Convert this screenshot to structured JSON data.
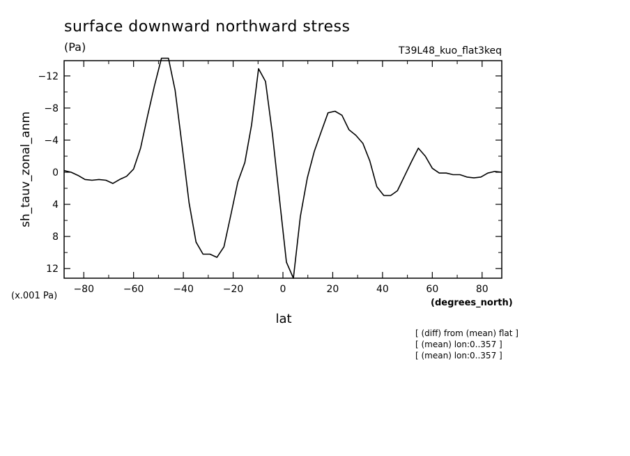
{
  "chart_data": {
    "type": "line",
    "title": "surface downward northward stress",
    "units_label": "(Pa)",
    "run_label": "T39L48_kuo_flat3keq",
    "xlabel": "lat",
    "x_units_label": "(degrees_north)",
    "ylabel": "sh_tauv_zonal_anm",
    "y_scale_label": "(x.001 Pa)",
    "notes": [
      "[ (diff) from (mean) flat ]",
      "[ (mean) lon:0..357 ]",
      "[ (mean) lon:0..357 ]"
    ],
    "xlim": [
      -87.9,
      87.9
    ],
    "ylim": [
      13.2,
      -13.9
    ],
    "y_inverted": true,
    "grid": false,
    "x_ticks": [
      -80,
      -60,
      -40,
      -20,
      0,
      20,
      40,
      60,
      80
    ],
    "x_tick_labels": [
      "−80",
      "−60",
      "−40",
      "−20",
      "0",
      "20",
      "40",
      "60",
      "80"
    ],
    "y_ticks": [
      -12,
      -8,
      -4,
      0,
      4,
      8,
      12
    ],
    "y_tick_labels": [
      "−12",
      "−8",
      "−4",
      "0",
      "4",
      "8",
      "12"
    ],
    "series": [
      {
        "x": [
          -87.9,
          -85.1,
          -82.3,
          -79.5,
          -76.7,
          -73.9,
          -71.1,
          -68.3,
          -65.6,
          -62.8,
          -60.0,
          -57.2,
          -54.4,
          -51.6,
          -48.8,
          -46.0,
          -43.3,
          -40.5,
          -37.7,
          -34.9,
          -32.1,
          -29.3,
          -26.5,
          -23.7,
          -20.9,
          -18.1,
          -15.3,
          -12.6,
          -9.8,
          -7.0,
          -4.2,
          -1.4,
          1.4,
          4.2,
          7.0,
          9.8,
          12.6,
          15.3,
          18.1,
          20.9,
          23.7,
          26.5,
          29.3,
          32.1,
          34.9,
          37.7,
          40.5,
          43.3,
          46.0,
          48.8,
          51.6,
          54.4,
          57.2,
          60.0,
          62.8,
          65.6,
          68.3,
          71.1,
          73.9,
          76.7,
          79.5,
          82.3,
          85.1,
          87.9
        ],
        "values": [
          -0.2,
          0.0,
          0.4,
          0.9,
          1.0,
          0.9,
          1.0,
          1.4,
          0.9,
          0.5,
          -0.4,
          -3.0,
          -7.0,
          -10.8,
          -14.2,
          -14.2,
          -10.2,
          -3.3,
          3.8,
          8.7,
          10.2,
          10.2,
          10.6,
          9.3,
          5.3,
          1.2,
          -1.2,
          -5.9,
          -12.9,
          -11.3,
          -4.7,
          3.3,
          11.2,
          13.2,
          5.5,
          0.7,
          -2.6,
          -5.0,
          -7.4,
          -7.6,
          -7.1,
          -5.3,
          -4.6,
          -3.6,
          -1.4,
          1.8,
          2.9,
          2.9,
          2.3,
          0.5,
          -1.3,
          -3.0,
          -2.0,
          -0.5,
          0.1,
          0.1,
          0.3,
          0.3,
          0.6,
          0.7,
          0.6,
          0.1,
          -0.1,
          0.0
        ]
      }
    ]
  }
}
